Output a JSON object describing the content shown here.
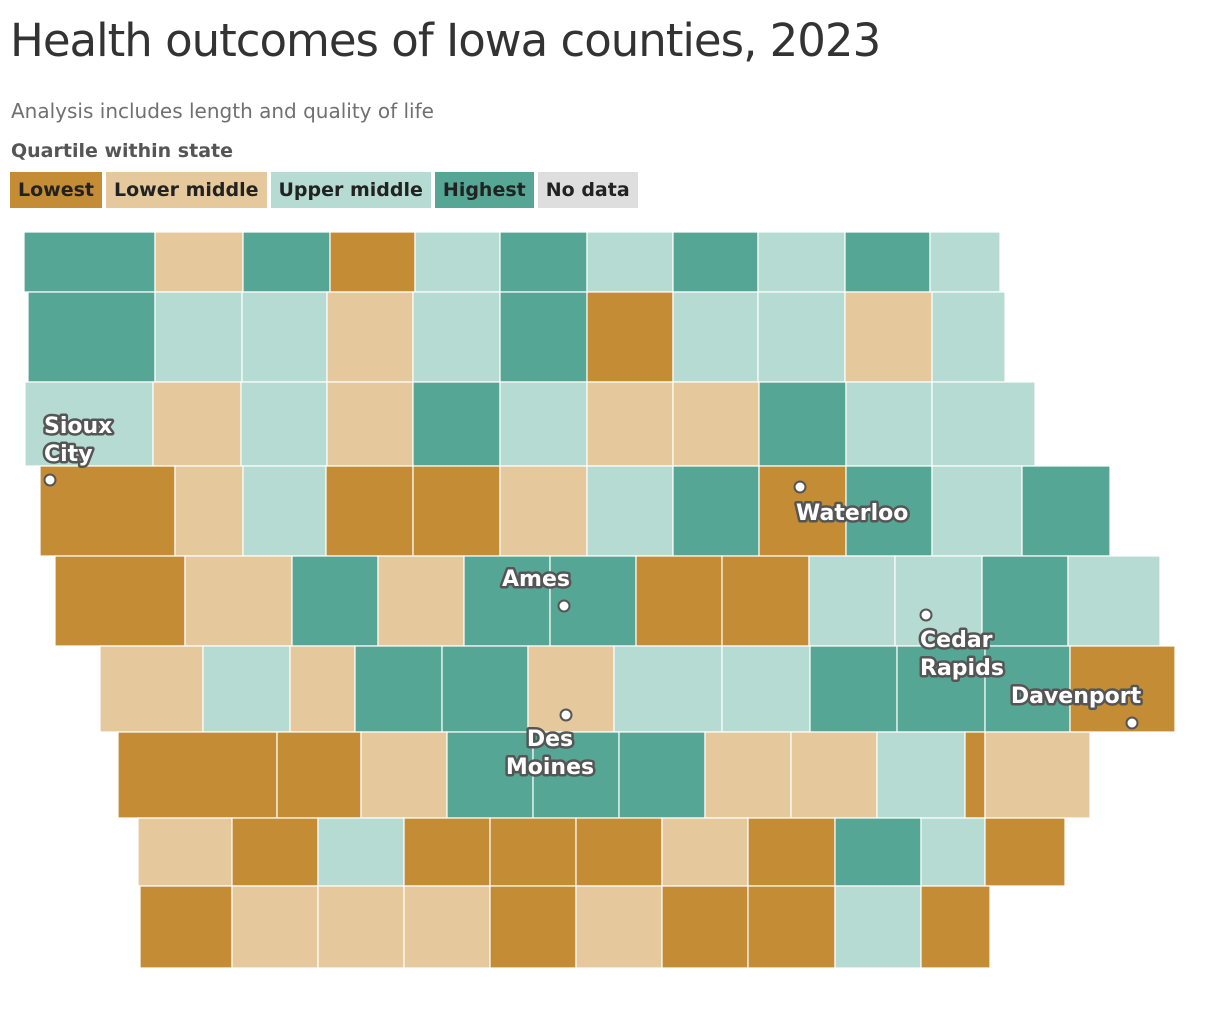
{
  "title": "Health outcomes of Iowa counties, 2023",
  "subtitle": "Analysis includes length and quality of life",
  "legend": {
    "title": "Quartile within state",
    "items": [
      {
        "label": "Lowest",
        "color": "#c48d35"
      },
      {
        "label": "Lower middle",
        "color": "#e5c99c"
      },
      {
        "label": "Upper middle",
        "color": "#b5dbd3"
      },
      {
        "label": "Highest",
        "color": "#55a695"
      },
      {
        "label": "No data",
        "color": "#dedede"
      }
    ]
  },
  "map": {
    "region": "Iowa",
    "county_quartiles": {
      "rows": [
        [
          "Highest",
          "Lower middle",
          "Highest",
          "Lowest",
          "Upper middle",
          "Highest",
          "Upper middle",
          "Highest",
          "Upper middle",
          "Highest",
          "Upper middle"
        ],
        [
          "Highest",
          "Upper middle",
          "Upper middle",
          "Lower middle",
          "Upper middle",
          "Highest",
          "Lowest",
          "Upper middle",
          "Upper middle",
          "Lower middle",
          "Upper middle"
        ],
        [
          "Upper middle",
          "Lower middle",
          "Upper middle",
          "Lower middle",
          "Highest",
          "Upper middle",
          "Lower middle",
          "Lower middle",
          "Highest",
          "Upper middle",
          "Upper middle"
        ],
        [
          "Lowest",
          "Lower middle",
          "Upper middle",
          "Lowest",
          "Lowest",
          "Lower middle",
          "Upper middle",
          "Highest",
          "Lowest",
          "Highest",
          "Upper middle",
          "Highest"
        ],
        [
          "Lowest",
          "Lower middle",
          "Highest",
          "Lower middle",
          "Highest",
          "Highest",
          "Lowest",
          "Lowest",
          "Upper middle",
          "Upper middle",
          "Highest",
          "Upper middle"
        ],
        [
          "Lower middle",
          "Upper middle",
          "Lower middle",
          "Highest",
          "Highest",
          "Lower middle",
          "Upper middle",
          "Upper middle",
          "Highest",
          "Highest",
          "Highest",
          "Lowest"
        ],
        [
          "Lowest",
          "Lowest",
          "Lower middle",
          "Highest",
          "Highest",
          "Highest",
          "Lower middle",
          "Lower middle",
          "Upper middle",
          "Lowest",
          "Lower middle"
        ],
        [
          "Lower middle",
          "Lowest",
          "Upper middle",
          "Lowest",
          "Lowest",
          "Lowest",
          "Lower middle",
          "Lowest",
          "Highest",
          "Upper middle",
          "Lowest"
        ],
        [
          "Lowest",
          "Lower middle",
          "Lower middle",
          "Lower middle",
          "Lowest",
          "Lower middle",
          "Lowest",
          "Lowest",
          "Upper middle",
          "Lowest"
        ]
      ]
    },
    "cities": [
      {
        "name": "Sioux City",
        "lines": [
          "Sioux",
          "City"
        ]
      },
      {
        "name": "Waterloo",
        "lines": [
          "Waterloo"
        ]
      },
      {
        "name": "Ames",
        "lines": [
          "Ames"
        ]
      },
      {
        "name": "Cedar Rapids",
        "lines": [
          "Cedar",
          "Rapids"
        ]
      },
      {
        "name": "Davenport",
        "lines": [
          "Davenport"
        ]
      },
      {
        "name": "Des Moines",
        "lines": [
          "Des",
          "Moines"
        ]
      }
    ]
  }
}
